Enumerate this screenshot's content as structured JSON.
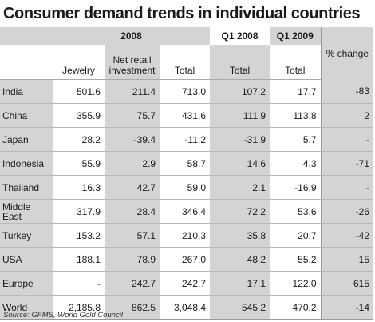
{
  "title": "Consumer demand trends in individual countries",
  "header": {
    "group_2008": "2008",
    "group_q1_2008": "Q1 2008",
    "group_q1_2009": "Q1 2009",
    "pct_change": "% change",
    "col_jewelry": "Jewelry",
    "col_net_retail": "Net retail investment",
    "col_total_2008": "Total",
    "col_total_q1_2008": "Total",
    "col_total_q1_2009": "Total"
  },
  "rows": [
    {
      "country": "India",
      "jewelry": "501.6",
      "net_retail": "211.4",
      "total_2008": "713.0",
      "q1_2008": "107.2",
      "q1_2009": "17.7",
      "pct": "-83"
    },
    {
      "country": "China",
      "jewelry": "355.9",
      "net_retail": "75.7",
      "total_2008": "431.6",
      "q1_2008": "111.9",
      "q1_2009": "113.8",
      "pct": "2"
    },
    {
      "country": "Japan",
      "jewelry": "28.2",
      "net_retail": "-39.4",
      "total_2008": "-11.2",
      "q1_2008": "-31.9",
      "q1_2009": "5.7",
      "pct": "-"
    },
    {
      "country": "Indonesia",
      "jewelry": "55.9",
      "net_retail": "2.9",
      "total_2008": "58.7",
      "q1_2008": "14.6",
      "q1_2009": "4.3",
      "pct": "-71"
    },
    {
      "country": "Thailand",
      "jewelry": "16.3",
      "net_retail": "42.7",
      "total_2008": "59.0",
      "q1_2008": "2.1",
      "q1_2009": "-16.9",
      "pct": "-"
    },
    {
      "country": "Middle East",
      "jewelry": "317.9",
      "net_retail": "28.4",
      "total_2008": "346.4",
      "q1_2008": "72.2",
      "q1_2009": "53.6",
      "pct": "-26"
    },
    {
      "country": "Turkey",
      "jewelry": "153.2",
      "net_retail": "57.1",
      "total_2008": "210.3",
      "q1_2008": "35.8",
      "q1_2009": "20.7",
      "pct": "-42"
    },
    {
      "country": "USA",
      "jewelry": "188.1",
      "net_retail": "78.9",
      "total_2008": "267.0",
      "q1_2008": "48.2",
      "q1_2009": "55.2",
      "pct": "15"
    },
    {
      "country": "Europe",
      "jewelry": "-",
      "net_retail": "242.7",
      "total_2008": "242.7",
      "q1_2008": "17.1",
      "q1_2009": "122.0",
      "pct": "615"
    },
    {
      "country": "World",
      "jewelry": "2,185.8",
      "net_retail": "862.5",
      "total_2008": "3,048.4",
      "q1_2008": "545.2",
      "q1_2009": "470.2",
      "pct": "-14"
    }
  ],
  "source": "Source: GFMS, World Gold Council"
}
